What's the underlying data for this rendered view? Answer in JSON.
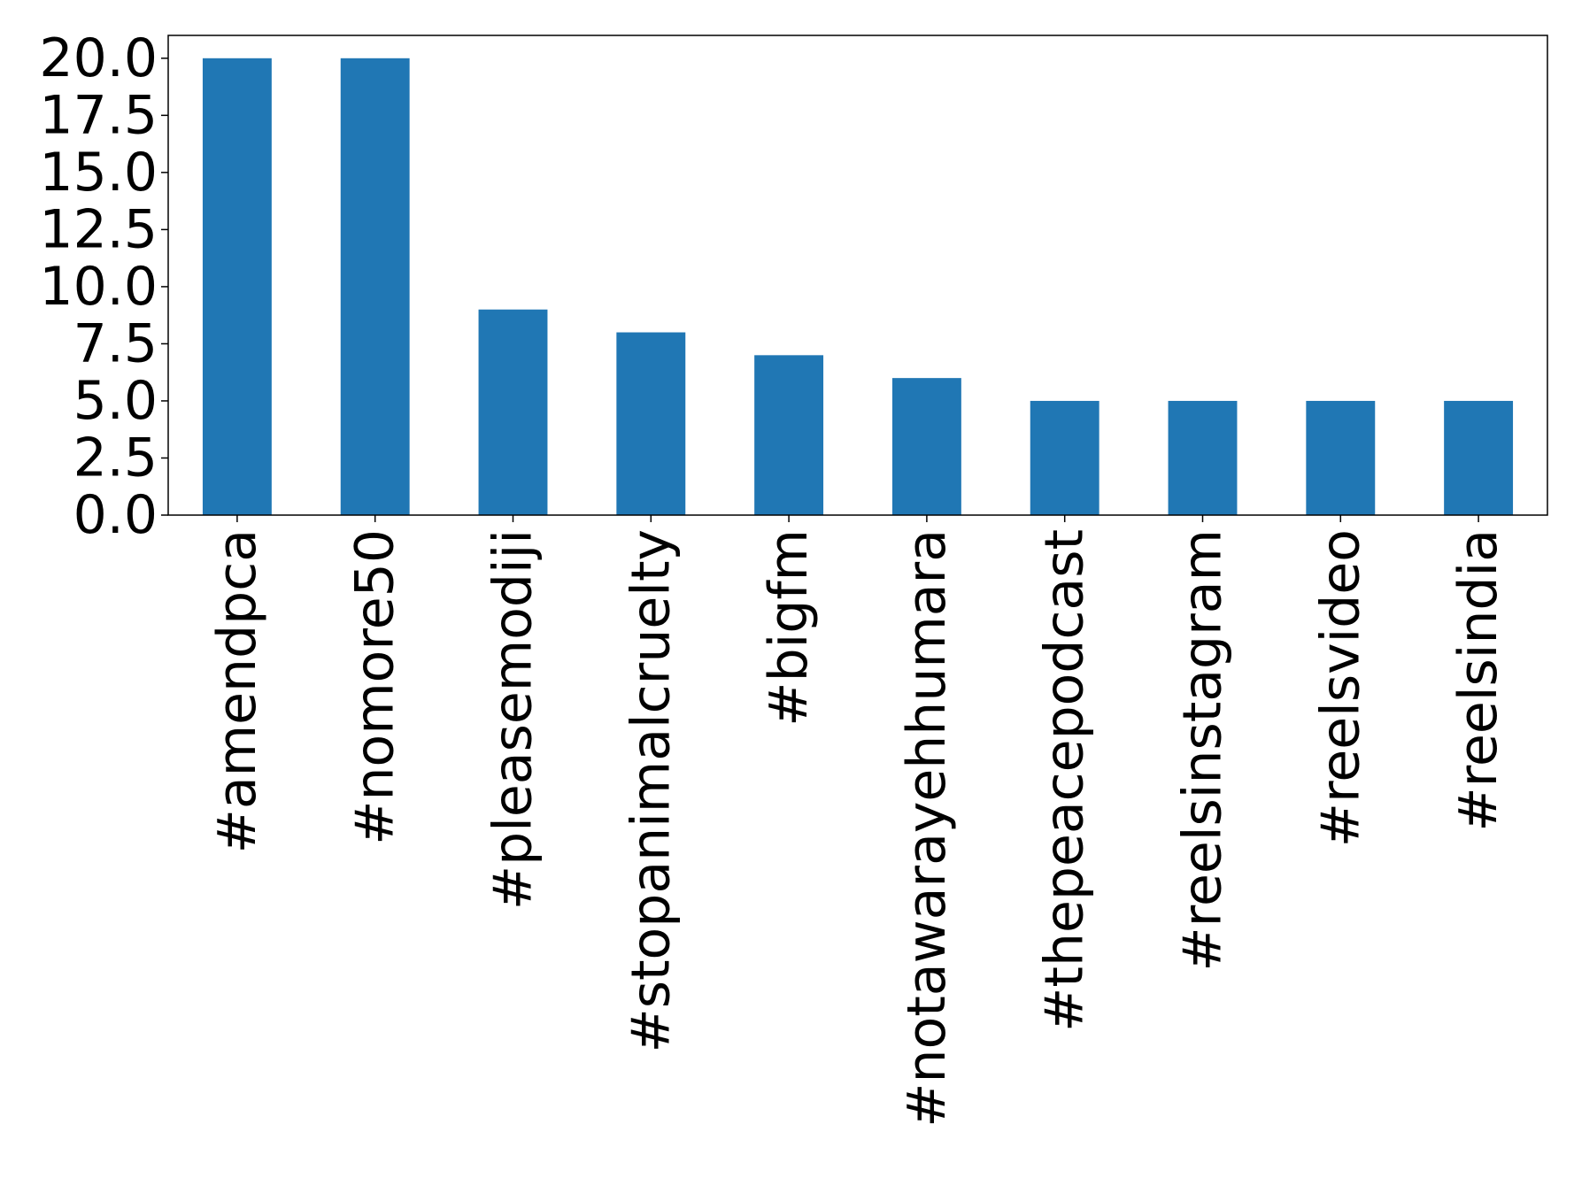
{
  "chart_data": {
    "type": "bar",
    "title": "",
    "xlabel": "",
    "ylabel": "",
    "categories": [
      "#amendpca",
      "#nomore50",
      "#pleasemodiji",
      "#stopanimalcruelty",
      "#bigfm",
      "#notawarayehhumara",
      "#thepeacepodcast",
      "#reelsinstagram",
      "#reelsvideo",
      "#reelsindia"
    ],
    "values": [
      20,
      20,
      9,
      8,
      7,
      6,
      5,
      5,
      5,
      5
    ],
    "ylim": [
      0,
      21
    ],
    "yticks": [
      0.0,
      2.5,
      5.0,
      7.5,
      10.0,
      12.5,
      15.0,
      17.5,
      20.0
    ],
    "ytick_labels": [
      "0.0",
      "2.5",
      "5.0",
      "7.5",
      "10.0",
      "12.5",
      "15.0",
      "17.5",
      "20.0"
    ],
    "xtick_rotation": "vertical",
    "grid": false,
    "legend": "none",
    "colors": {
      "bar": "#2077b4",
      "axes": "#000000",
      "background": "#ffffff"
    }
  }
}
